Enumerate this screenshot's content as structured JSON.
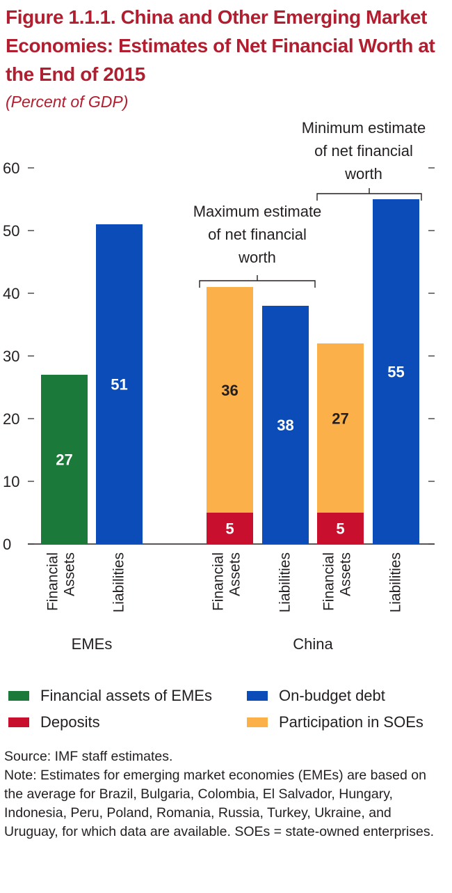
{
  "figure": {
    "title": "Figure 1.1.1. China and Other Emerging Market Economies: Estimates of Net Financial Worth at the End of 2015",
    "subtitle": "(Percent of GDP)"
  },
  "chart_data": {
    "type": "bar",
    "stacked": true,
    "title": "Figure 1.1.1. China and Other Emerging Market Economies: Estimates of Net Financial Worth at the End of 2015",
    "subtitle": "(Percent of GDP)",
    "ylim": [
      0,
      60
    ],
    "yticks": [
      0,
      10,
      20,
      30,
      40,
      50,
      60
    ],
    "grid": false,
    "groups": [
      "EMEs",
      "China"
    ],
    "bars": [
      {
        "group": "EMEs",
        "label": "Financial Assets",
        "segments": [
          {
            "series": "Financial assets of EMEs",
            "value": 27
          }
        ],
        "data_label": "27"
      },
      {
        "group": "EMEs",
        "label": "Liabilities",
        "segments": [
          {
            "series": "On-budget debt",
            "value": 51
          }
        ],
        "data_label": "51"
      },
      {
        "group": "China",
        "label": "Financial Assets",
        "segments": [
          {
            "series": "Deposits",
            "value": 5
          },
          {
            "series": "Participation in SOEs",
            "value": 36
          }
        ]
      },
      {
        "group": "China",
        "label": "Liabilities",
        "segments": [
          {
            "series": "On-budget debt",
            "value": 38
          }
        ],
        "data_label": "38"
      },
      {
        "group": "China",
        "label": "Financial Assets",
        "segments": [
          {
            "series": "Deposits",
            "value": 5
          },
          {
            "series": "Participation in SOEs",
            "value": 27
          }
        ]
      },
      {
        "group": "China",
        "label": "Liabilities",
        "segments": [
          {
            "series": "On-budget debt",
            "value": 55
          }
        ],
        "data_label": "55"
      }
    ],
    "series": [
      {
        "name": "Financial assets of EMEs",
        "color": "#1b7a3a"
      },
      {
        "name": "Deposits",
        "color": "#c8102e"
      },
      {
        "name": "On-budget debt",
        "color": "#0b4cb8"
      },
      {
        "name": "Participation in SOEs",
        "color": "#fbb04a"
      }
    ],
    "annotations": [
      {
        "text": "Maximum estimate of net financial worth",
        "lines": [
          "Maximum estimate",
          "of net financial",
          "worth"
        ],
        "spans_bars": [
          2,
          3
        ]
      },
      {
        "text": "Minimum estimate of net financial worth",
        "lines": [
          "Minimum estimate",
          "of net financial",
          "worth"
        ],
        "spans_bars": [
          4,
          5
        ]
      }
    ],
    "legend_placement": "bottom"
  },
  "legend": [
    {
      "label": "Financial assets of EMEs",
      "color": "#1b7a3a"
    },
    {
      "label": "On-budget debt",
      "color": "#0b4cb8"
    },
    {
      "label": "Deposits",
      "color": "#c8102e"
    },
    {
      "label": "Participation in SOEs",
      "color": "#fbb04a"
    }
  ],
  "notes": {
    "source": "Source: IMF staff estimates.",
    "note": "Note: Estimates for emerging market economies (EMEs) are based on the average for Brazil, Bulgaria, Colombia, El Salvador, Hungary, Indonesia, Peru, Poland, Romania, Russia, Turkey, Ukraine, and Uruguay, for which data are available. SOEs = state-owned enterprises."
  }
}
